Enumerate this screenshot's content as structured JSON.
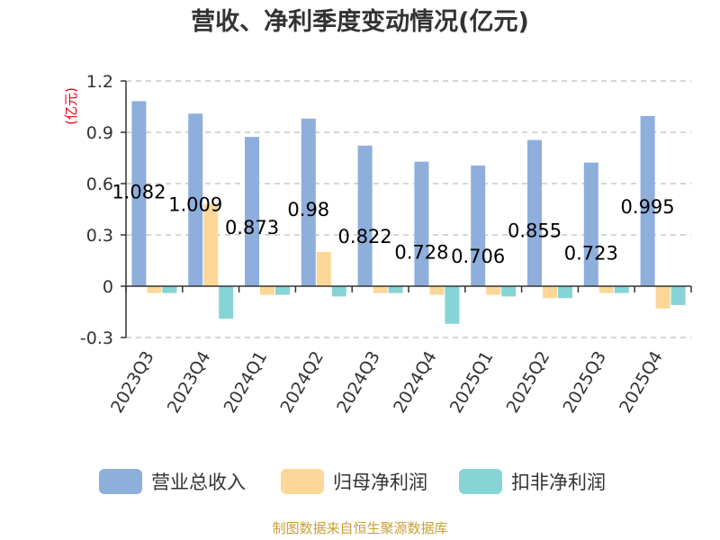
{
  "chart_data": {
    "type": "bar",
    "title": "营收、净利季度变动情况(亿元)",
    "unit_label": "(亿元)",
    "categories": [
      "2023Q3",
      "2023Q4",
      "2024Q1",
      "2024Q2",
      "2024Q3",
      "2024Q4",
      "2025Q1",
      "2025Q2",
      "2025Q3",
      "2025Q4"
    ],
    "series": [
      {
        "name": "营业总收入",
        "color": "#8eaedc",
        "values": [
          1.082,
          1.009,
          0.873,
          0.98,
          0.822,
          0.728,
          0.706,
          0.855,
          0.723,
          0.995
        ]
      },
      {
        "name": "归母净利润",
        "color": "#fdd797",
        "values": [
          -0.04,
          0.48,
          -0.05,
          0.2,
          -0.04,
          -0.05,
          -0.05,
          -0.07,
          -0.04,
          -0.13
        ]
      },
      {
        "name": "扣非净利润",
        "color": "#86d4d6",
        "values": [
          -0.04,
          -0.19,
          -0.05,
          -0.06,
          -0.04,
          -0.22,
          -0.06,
          -0.07,
          -0.04,
          -0.11
        ]
      }
    ],
    "data_labels": [
      "1.082",
      "1.009",
      "0.873",
      "0.98",
      "0.822",
      "0.728",
      "0.706",
      "0.855",
      "0.723",
      "0.995"
    ],
    "ylim": [
      -0.3,
      1.2
    ],
    "yticks": [
      "-0.3",
      "0",
      "0.3",
      "0.6",
      "0.9",
      "1.2"
    ],
    "grid": true,
    "legend_position": "bottom",
    "source": "制图数据来自恒生聚源数据库"
  }
}
